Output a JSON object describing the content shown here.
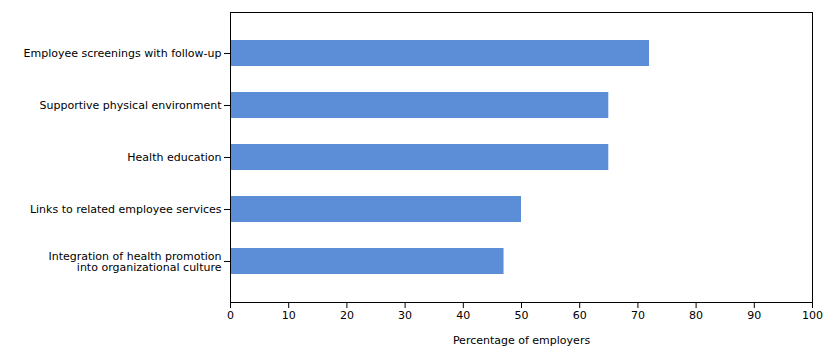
{
  "chart_data": {
    "type": "bar",
    "orientation": "horizontal",
    "categories": [
      "Integration of health promotion\ninto organizational culture",
      "Links to related employee services",
      "Health education",
      "Supportive physical environment",
      "Employee screenings with follow-up"
    ],
    "values": [
      47,
      50,
      65,
      65,
      72
    ],
    "color": "#5B8ED6",
    "xlabel": "Percentage of employers",
    "xlim": [
      0,
      100
    ],
    "xticks": [
      0,
      10,
      20,
      30,
      40,
      50,
      60,
      70,
      80,
      90,
      100
    ],
    "grid": false
  }
}
